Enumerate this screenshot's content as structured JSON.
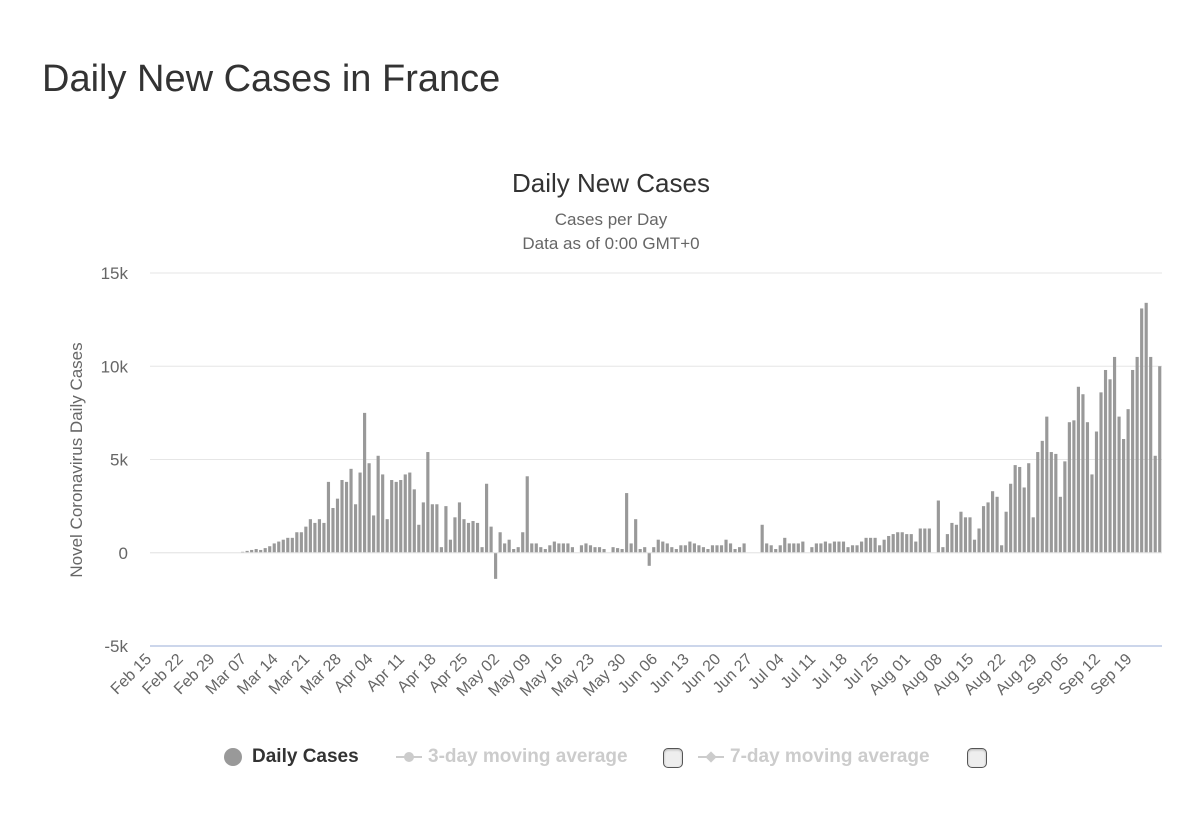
{
  "page": {
    "title": "Daily New Cases in France"
  },
  "chart_data": {
    "type": "bar",
    "title": "Daily New Cases",
    "subtitle_lines": [
      "Cases per Day",
      "Data as of 0:00 GMT+0"
    ],
    "ylabel": "Novel Coronavirus Daily Cases",
    "xlabel": "",
    "ylim": [
      -5000,
      15000
    ],
    "yticks": [
      15000,
      10000,
      5000,
      0,
      -5000
    ],
    "ytick_labels": [
      "15k",
      "10k",
      "5k",
      "0",
      "-5k"
    ],
    "x_start": "2020-02-15",
    "x_end": "2020-09-23",
    "xtick_labels": [
      "Feb 15",
      "Feb 22",
      "Feb 29",
      "Mar 07",
      "Mar 14",
      "Mar 21",
      "Mar 28",
      "Apr 04",
      "Apr 11",
      "Apr 18",
      "Apr 25",
      "May 02",
      "May 09",
      "May 16",
      "May 23",
      "May 30",
      "Jun 06",
      "Jun 13",
      "Jun 20",
      "Jun 27",
      "Jul 04",
      "Jul 11",
      "Jul 18",
      "Jul 25",
      "Aug 01",
      "Aug 08",
      "Aug 15",
      "Aug 22",
      "Aug 29",
      "Sep 05",
      "Sep 12",
      "Sep 19"
    ],
    "grid": true,
    "bar_color": "#999999",
    "series": [
      {
        "name": "Daily Cases",
        "values": [
          0,
          0,
          0,
          0,
          0,
          0,
          0,
          0,
          0,
          0,
          0,
          0,
          0,
          0,
          0,
          0,
          0,
          0,
          0,
          0,
          50,
          100,
          150,
          200,
          150,
          250,
          350,
          500,
          600,
          700,
          800,
          800,
          1100,
          1100,
          1400,
          1800,
          1600,
          1800,
          1600,
          3800,
          2400,
          2900,
          3900,
          3800,
          4500,
          2600,
          4300,
          7500,
          4800,
          2000,
          5200,
          4200,
          1800,
          3900,
          3800,
          3900,
          4200,
          4300,
          3400,
          1500,
          2700,
          5400,
          2600,
          2600,
          300,
          2500,
          700,
          1900,
          2700,
          1800,
          1600,
          1700,
          1600,
          300,
          3700,
          1400,
          -1400,
          1100,
          500,
          700,
          200,
          300,
          1100,
          4100,
          500,
          500,
          300,
          200,
          400,
          600,
          500,
          500,
          500,
          300,
          0,
          400,
          500,
          400,
          300,
          300,
          200,
          0,
          300,
          250,
          200,
          3200,
          500,
          1800,
          200,
          300,
          -700,
          300,
          700,
          600,
          500,
          300,
          200,
          400,
          400,
          600,
          500,
          400,
          300,
          200,
          400,
          400,
          400,
          700,
          500,
          200,
          300,
          500,
          0,
          0,
          0,
          1500,
          500,
          400,
          200,
          400,
          800,
          500,
          500,
          500,
          600,
          0,
          300,
          500,
          500,
          600,
          500,
          600,
          600,
          600,
          300,
          400,
          400,
          600,
          800,
          800,
          800,
          400,
          700,
          900,
          1000,
          1100,
          1100,
          1000,
          1000,
          600,
          1300,
          1300,
          1300,
          0,
          2800,
          300,
          1000,
          1600,
          1500,
          2200,
          1900,
          1900,
          700,
          1300,
          2500,
          2700,
          3300,
          3000,
          400,
          2200,
          3700,
          4700,
          4600,
          3500,
          4800,
          1900,
          5400,
          6000,
          7300,
          5400,
          5300,
          3000,
          4900,
          7000,
          7100,
          8900,
          8500,
          7000,
          4200,
          6500,
          8600,
          9800,
          9300,
          10500,
          7300,
          6100,
          7700,
          9800,
          10500,
          13100,
          13400,
          10500,
          5200,
          10000
        ]
      }
    ]
  },
  "legend": {
    "items": [
      {
        "label": "Daily Cases",
        "active": true
      },
      {
        "label": "3-day moving average",
        "active": false
      },
      {
        "label": "7-day moving average",
        "active": false
      }
    ]
  },
  "colors": {
    "bar": "#999999",
    "grid": "#e6e6e6",
    "axis_line": "#ccd6eb",
    "text": "#333333",
    "tick_text": "#666666",
    "inactive": "#cccccc"
  }
}
